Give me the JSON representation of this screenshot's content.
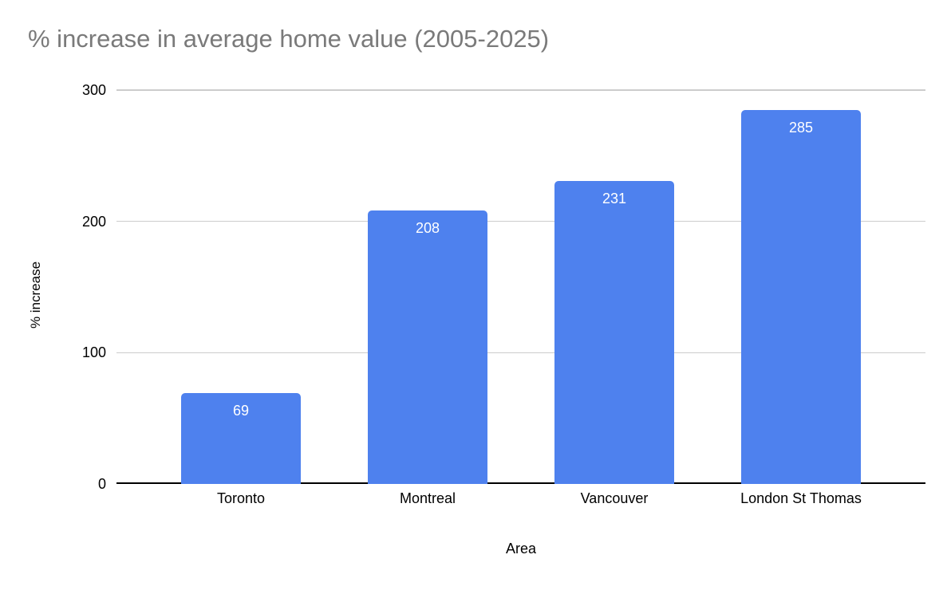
{
  "page": {
    "background_color": "#ffffff"
  },
  "chart_data": {
    "type": "bar",
    "title": "% increase in average home value (2005-2025)",
    "xlabel": "Area",
    "ylabel": "% increase",
    "categories": [
      "Toronto",
      "Montreal",
      "Vancouver",
      "London St Thomas"
    ],
    "values": [
      69,
      208,
      231,
      285
    ],
    "data_labels": [
      "69",
      "208",
      "231",
      "285"
    ],
    "yticks": [
      0,
      100,
      200,
      300
    ],
    "ylim": [
      0,
      300
    ],
    "grid": true,
    "legend_position": "none",
    "colors": {
      "bar": "#4e81ee",
      "title_text": "#7a7a7a",
      "axis_text": "#000000",
      "gridline": "#cccccc",
      "axis_line": "#000000",
      "data_label_text": "#ffffff",
      "background": "#ffffff"
    }
  }
}
